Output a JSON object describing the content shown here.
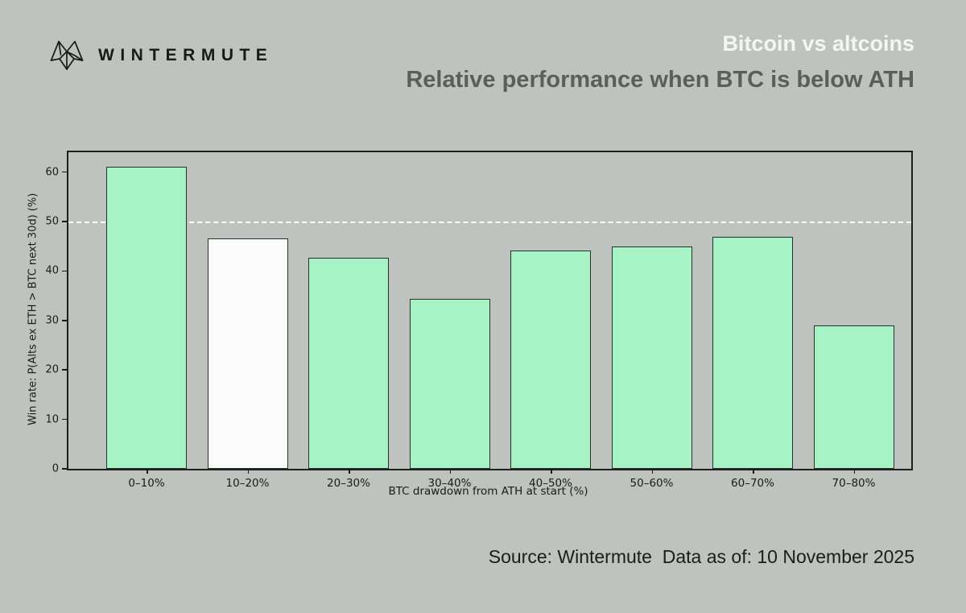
{
  "header": {
    "brand": "WINTERMUTE",
    "title": "Bitcoin vs altcoins",
    "subtitle": "Relative performance when BTC is below ATH"
  },
  "chart_data": {
    "type": "bar",
    "categories": [
      "0–10%",
      "10–20%",
      "20–30%",
      "30–40%",
      "40–50%",
      "50–60%",
      "60–70%",
      "70–80%"
    ],
    "values": [
      61.0,
      46.5,
      42.6,
      34.3,
      44.2,
      45.0,
      46.9,
      29.0
    ],
    "bar_colors": [
      "#a6f4c6",
      "#fafbfa",
      "#a6f4c6",
      "#a6f4c6",
      "#a6f4c6",
      "#a6f4c6",
      "#a6f4c6",
      "#a6f4c6"
    ],
    "highlighted_category": "10–20%",
    "xlabel": "BTC drawdown from ATH at start (%)",
    "ylabel": "Win rate: P(Alts ex ETH > BTC next 30d) (%)",
    "ylim": [
      0,
      64
    ],
    "yticks": [
      0,
      10,
      20,
      30,
      40,
      50,
      60
    ],
    "reference_line": {
      "y": 50,
      "style": "dashed",
      "color": "#ffffff"
    },
    "grid": false,
    "legend": false
  },
  "footer": {
    "source_text": "Source: Wintermute  Data as of: 10 November 2025"
  },
  "colors": {
    "background": "#bfc3c0",
    "bar_green": "#a6f4c6",
    "bar_highlight": "#fafbfa",
    "bar_border": "#283229",
    "axis": "#1a1a1a",
    "title": "#f3f6f3",
    "subtitle": "#595f5a",
    "text": "#191919"
  }
}
